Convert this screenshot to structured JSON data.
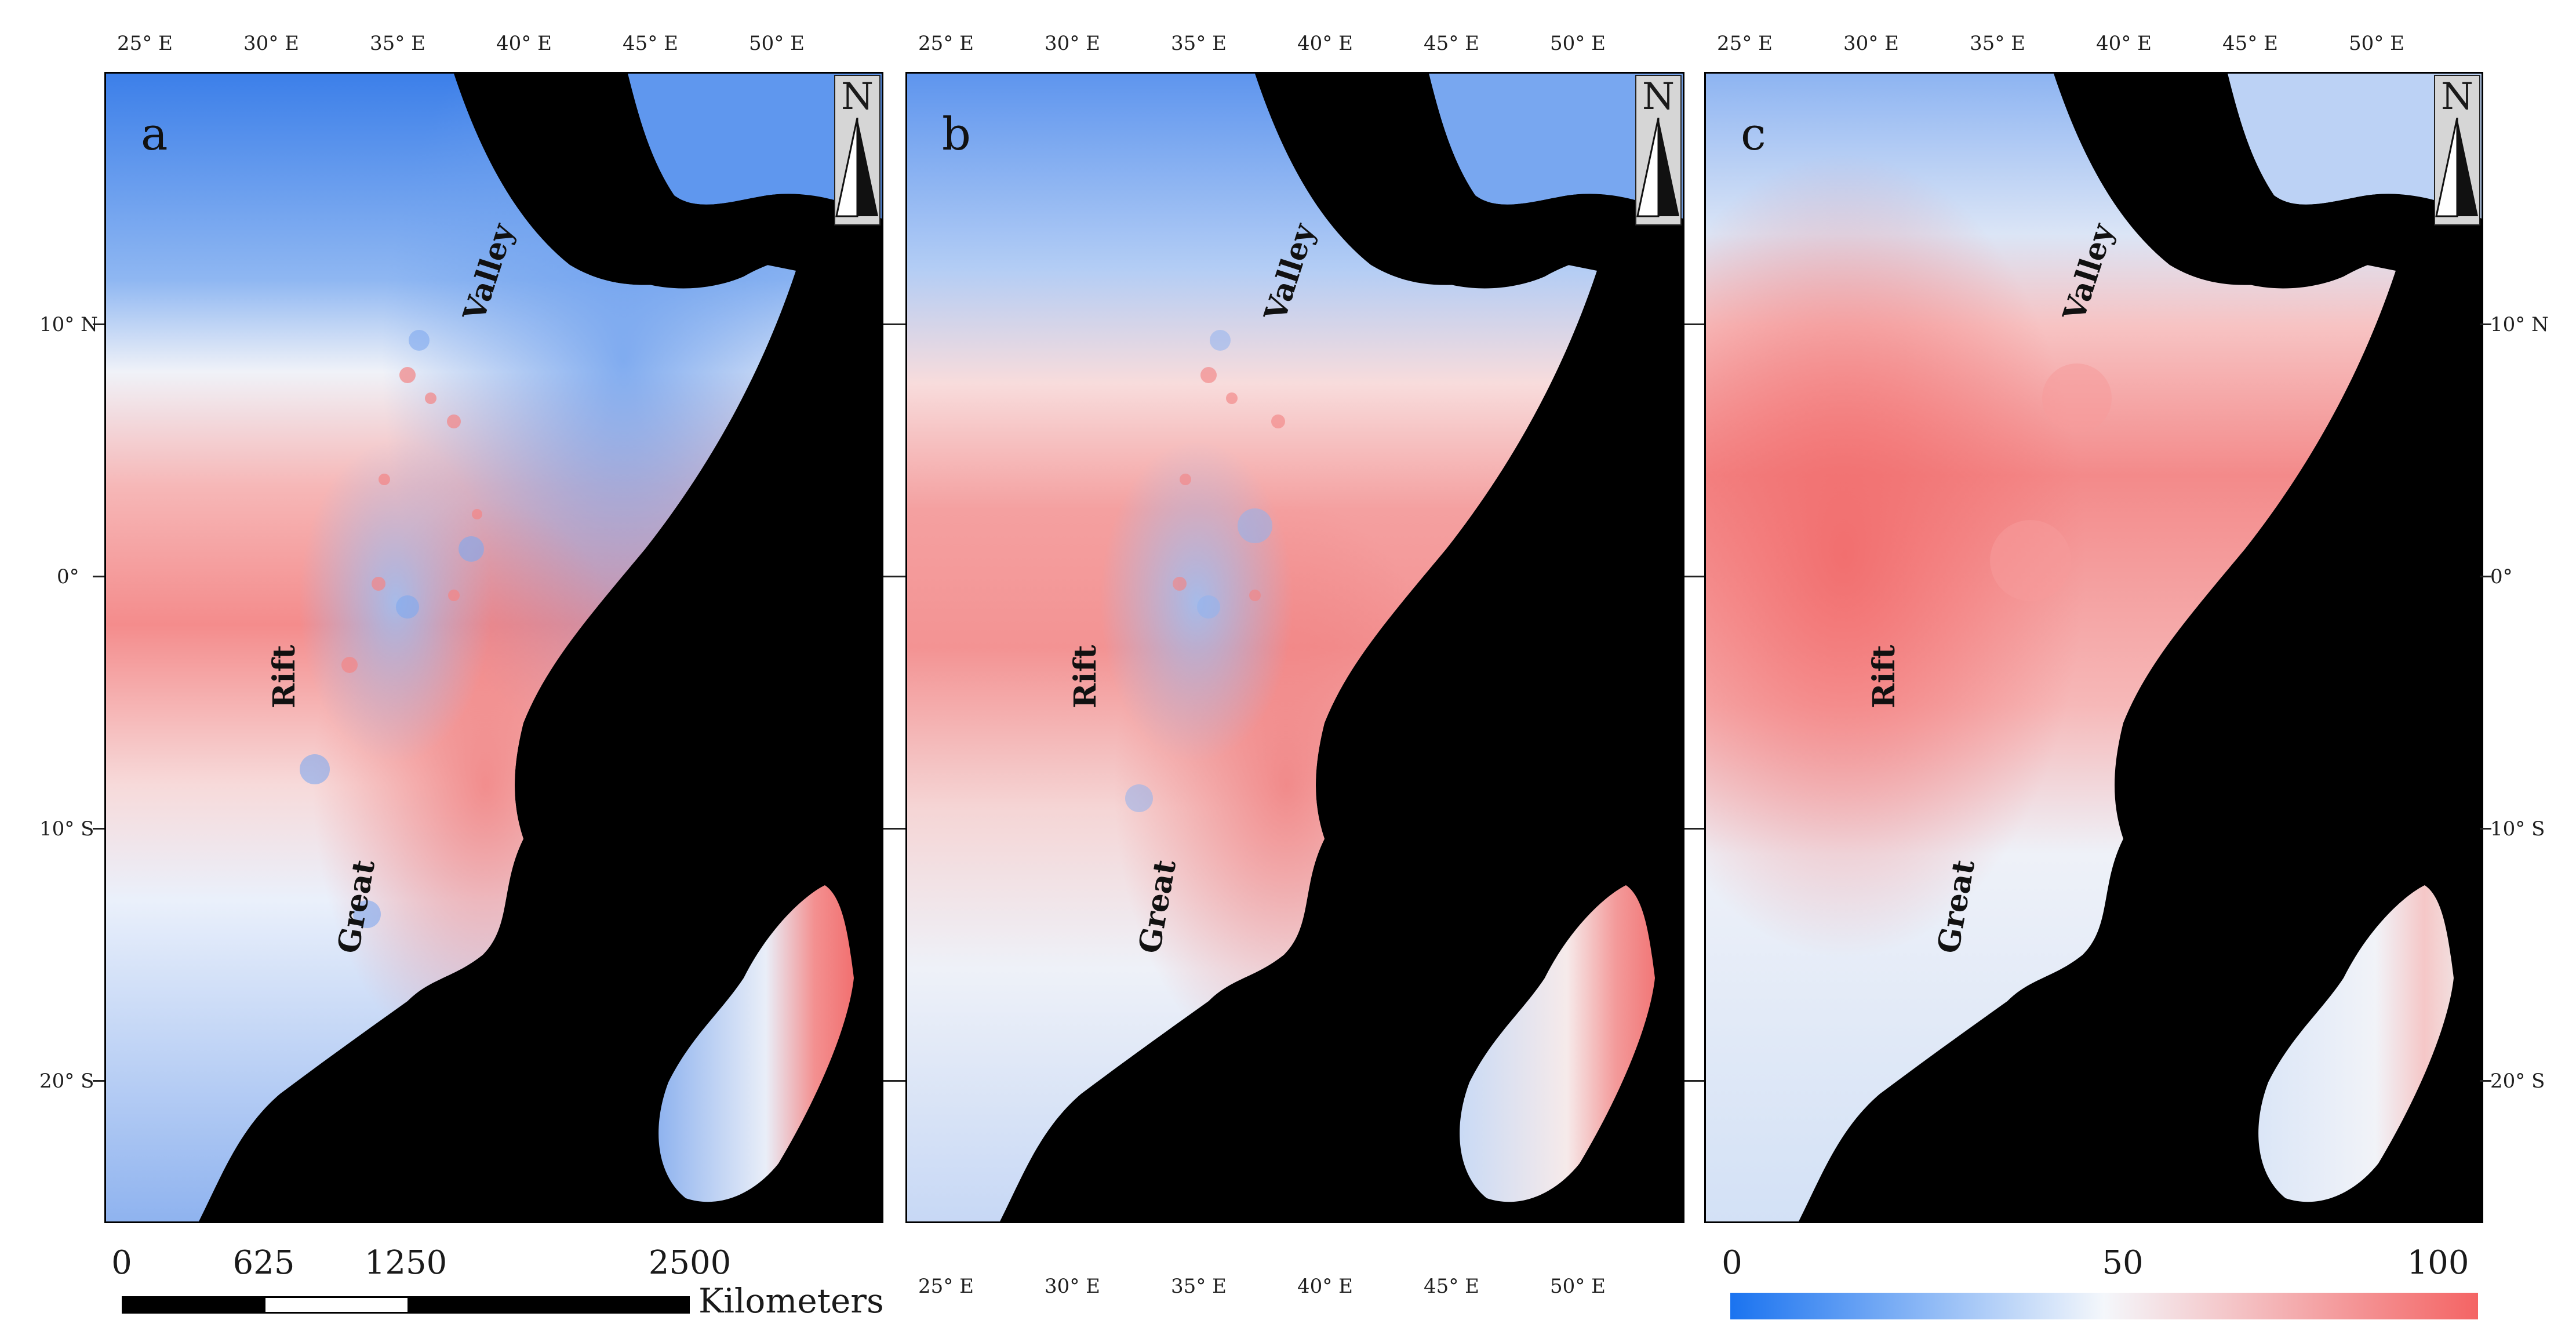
{
  "panels": [
    {
      "label": "a"
    },
    {
      "label": "b"
    },
    {
      "label": "c"
    }
  ],
  "axes": {
    "lon_labels": [
      "25° E",
      "30° E",
      "35° E",
      "40° E",
      "45° E",
      "50° E"
    ],
    "lat_labels": [
      "10° N",
      "0°",
      "10° S",
      "20° S"
    ]
  },
  "features": {
    "rift_valley_words": [
      "Valley",
      "Rift",
      "Great"
    ]
  },
  "north_arrow": {
    "letter": "N"
  },
  "scale_bar": {
    "ticks": [
      "0",
      "625",
      "1250",
      "2500"
    ],
    "unit": "Kilometers"
  },
  "colorbar": {
    "min_label": "0",
    "mid_label": "50",
    "max_label": "100",
    "low_color": "#1a73f0",
    "mid_color": "#f4f7fb",
    "high_color": "#f46464"
  },
  "colors": {
    "land_mask": "#000000",
    "cool": "#4f8ff0",
    "warm": "#f27b7b",
    "neutral": "#eef2f8"
  }
}
